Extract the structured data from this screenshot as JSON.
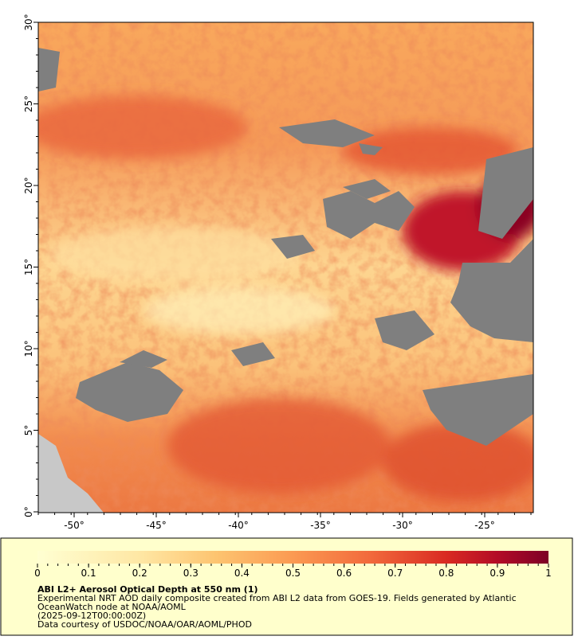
{
  "map": {
    "lat_ticks": [
      {
        "value": 0,
        "label": "0°"
      },
      {
        "value": 5,
        "label": "5°"
      },
      {
        "value": 10,
        "label": "10°"
      },
      {
        "value": 15,
        "label": "15°"
      },
      {
        "value": 20,
        "label": "20°"
      },
      {
        "value": 25,
        "label": "25°"
      },
      {
        "value": 30,
        "label": "30°"
      }
    ],
    "lon_ticks": [
      {
        "value": -50,
        "label": "-50°"
      },
      {
        "value": -45,
        "label": "-45°"
      },
      {
        "value": -40,
        "label": "-40°"
      },
      {
        "value": -35,
        "label": "-35°"
      },
      {
        "value": -30,
        "label": "-30°"
      },
      {
        "value": -25,
        "label": "-25°"
      }
    ]
  },
  "colorbar": {
    "ticks": [
      0,
      0.1,
      0.2,
      0.3,
      0.4,
      0.5,
      0.6,
      0.7,
      0.8,
      0.9,
      1
    ]
  },
  "caption": {
    "title": "ABI L2+ Aerosol Optical Depth at 550 nm (1)",
    "lines": [
      "Experimental NRT AOD daily composite created from ABI L2 data from GOES-19. Fields generated by Atlantic",
      "OceanWatch node at NOAA/AOML",
      "(2025-09-12T00:00:00Z)",
      "Data courtesy of USDOC/NOAA/OAR/AOML/PHOD"
    ]
  }
}
